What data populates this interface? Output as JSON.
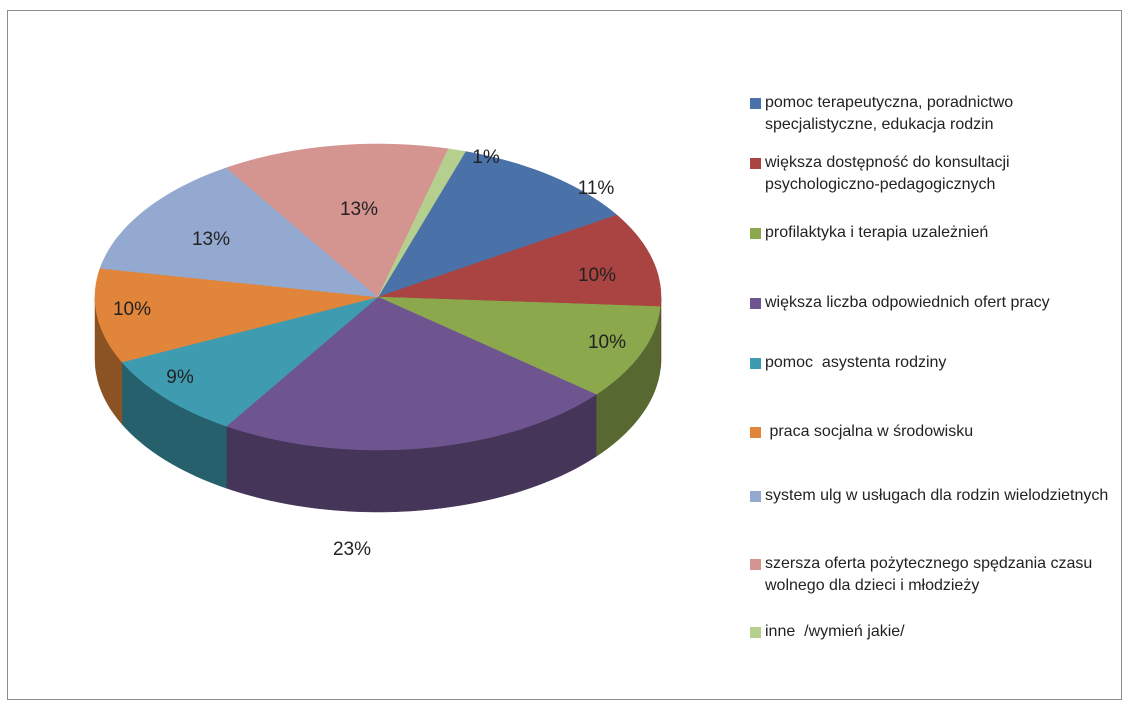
{
  "chart_data": {
    "type": "pie3d",
    "categories": [
      "pomoc terapeutyczna, poradnictwo specjalistyczne, edukacja rodzin",
      "większa dostępność do konsultacji psychologiczno-pedagogicznych",
      "profilaktyka i terapia uzależnień",
      "większa liczba odpowiednich ofert pracy",
      "pomoc  asystenta rodziny",
      " praca socjalna w środowisku",
      "system ulg w usługach dla rodzin wielodzietnych",
      "szersza oferta pożytecznego spędzania czasu wolnego dla dzieci i młodzieży",
      "inne  /wymień jakie/"
    ],
    "values": [
      11,
      10,
      10,
      23,
      9,
      10,
      13,
      13,
      1
    ],
    "value_labels": [
      "11%",
      "10%",
      "10%",
      "23%",
      "9%",
      "10%",
      "13%",
      "13%",
      "1%"
    ],
    "colors": [
      "#4a72a8",
      "#a94442",
      "#8ca84d",
      "#6f5590",
      "#3e9bb0",
      "#e0853a",
      "#93a9d0",
      "#d49490",
      "#b5cf8e"
    ],
    "legend": "right"
  }
}
